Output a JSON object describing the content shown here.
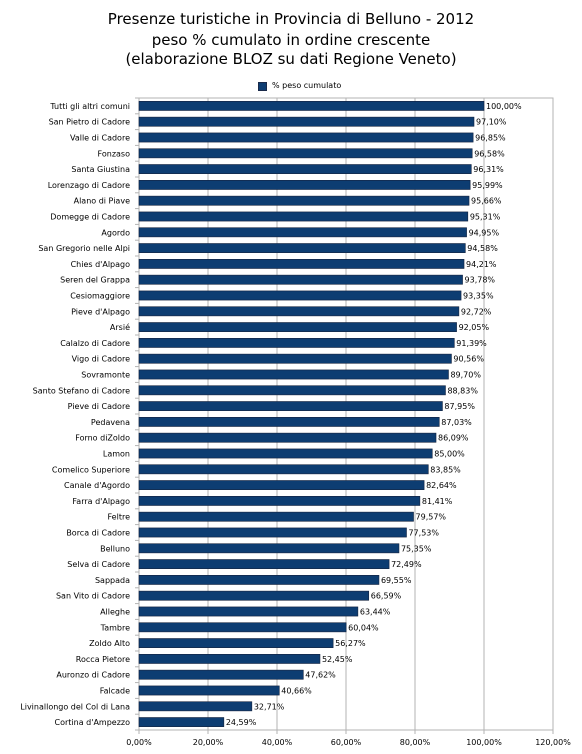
{
  "chart_data": {
    "type": "bar",
    "orientation": "horizontal",
    "title": "Presenze turistiche in Provincia di Belluno - 2012",
    "subtitle_lines": [
      "peso % cumulato in ordine crescente",
      "(elaborazione BLOZ su dati Regione Veneto)"
    ],
    "legend": [
      "% peso cumulato"
    ],
    "legend_position": "top",
    "bar_color": "#0d3d72",
    "grid": true,
    "xlim": [
      0,
      120
    ],
    "x_ticks": [
      "0,00%",
      "20,00%",
      "40,00%",
      "60,00%",
      "80,00%",
      "100,00%",
      "120,00%"
    ],
    "categories": [
      "Tutti gli altri comuni",
      "San Pietro di Cadore",
      "Valle di Cadore",
      "Fonzaso",
      "Santa Giustina",
      "Lorenzago di Cadore",
      "Alano di Piave",
      "Domegge di Cadore",
      "Agordo",
      "San Gregorio nelle Alpi",
      "Chies d'Alpago",
      "Seren del Grappa",
      "Cesiomaggiore",
      "Pieve d'Alpago",
      "Arsié",
      "Calalzo di Cadore",
      "Vigo di Cadore",
      "Sovramonte",
      "Santo Stefano di Cadore",
      "Pieve di Cadore",
      "Pedavena",
      "Forno diZoldo",
      "Lamon",
      "Comelico Superiore",
      "Canale d'Agordo",
      "Farra d'Alpago",
      "Feltre",
      "Borca di Cadore",
      "Belluno",
      "Selva di Cadore",
      "Sappada",
      "San Vito di Cadore",
      "Alleghe",
      "Tambre",
      "Zoldo Alto",
      "Rocca Pietore",
      "Auronzo di Cadore",
      "Falcade",
      "Livinallongo del Col di Lana",
      "Cortina d'Ampezzo"
    ],
    "values": [
      100.0,
      97.1,
      96.85,
      96.58,
      96.31,
      95.99,
      95.66,
      95.31,
      94.95,
      94.58,
      94.21,
      93.78,
      93.35,
      92.72,
      92.05,
      91.39,
      90.56,
      89.7,
      88.83,
      87.95,
      87.03,
      86.09,
      85.0,
      83.85,
      82.64,
      81.41,
      79.57,
      77.53,
      75.35,
      72.49,
      69.55,
      66.59,
      63.44,
      60.04,
      56.27,
      52.45,
      47.62,
      40.66,
      32.71,
      24.59
    ],
    "value_labels": [
      "100,00%",
      "97,10%",
      "96,85%",
      "96,58%",
      "96,31%",
      "95,99%",
      "95,66%",
      "95,31%",
      "94,95%",
      "94,58%",
      "94,21%",
      "93,78%",
      "93,35%",
      "92,72%",
      "92,05%",
      "91,39%",
      "90,56%",
      "89,70%",
      "88,83%",
      "87,95%",
      "87,03%",
      "86,09%",
      "85,00%",
      "83,85%",
      "82,64%",
      "81,41%",
      "79,57%",
      "77,53%",
      "75,35%",
      "72,49%",
      "69,55%",
      "66,59%",
      "63,44%",
      "60,04%",
      "56,27%",
      "52,45%",
      "47,62%",
      "40,66%",
      "32,71%",
      "24,59%"
    ]
  }
}
